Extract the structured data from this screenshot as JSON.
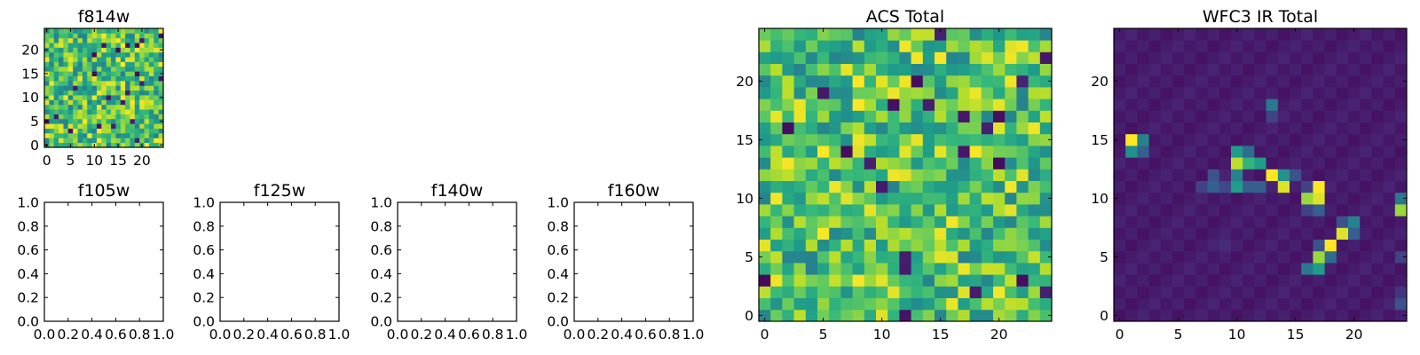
{
  "chart_data": [
    {
      "type": "heatmap",
      "title": "f814w",
      "grid_size": 25,
      "xlim": [
        -0.5,
        24.5
      ],
      "ylim": [
        -0.5,
        24.5
      ],
      "xticks": [
        0,
        5,
        10,
        15,
        20
      ],
      "yticks": [
        0,
        5,
        10,
        15,
        20
      ],
      "colormap": "viridis",
      "seed": 814,
      "value_range": [
        0,
        1
      ],
      "typical_value": 0.72
    },
    {
      "type": "empty",
      "title": "f105w",
      "xlim": [
        0,
        1
      ],
      "ylim": [
        0,
        1
      ],
      "xticks": [
        "0.0",
        "0.2",
        "0.4",
        "0.6",
        "0.8",
        "1.0"
      ],
      "yticks": [
        "0.0",
        "0.2",
        "0.4",
        "0.6",
        "0.8",
        "1.0"
      ]
    },
    {
      "type": "empty",
      "title": "f125w",
      "xlim": [
        0,
        1
      ],
      "ylim": [
        0,
        1
      ],
      "xticks": [
        "0.0",
        "0.2",
        "0.4",
        "0.6",
        "0.8",
        "1.0"
      ],
      "yticks": [
        "0.0",
        "0.2",
        "0.4",
        "0.6",
        "0.8",
        "1.0"
      ]
    },
    {
      "type": "empty",
      "title": "f140w",
      "xlim": [
        0,
        1
      ],
      "ylim": [
        0,
        1
      ],
      "xticks": [
        "0.0",
        "0.2",
        "0.4",
        "0.6",
        "0.8",
        "1.0"
      ],
      "yticks": [
        "0.0",
        "0.2",
        "0.4",
        "0.6",
        "0.8",
        "1.0"
      ]
    },
    {
      "type": "empty",
      "title": "f160w",
      "xlim": [
        0,
        1
      ],
      "ylim": [
        0,
        1
      ],
      "xticks": [
        "0.0",
        "0.2",
        "0.4",
        "0.6",
        "0.8",
        "1.0"
      ],
      "yticks": [
        "0.0",
        "0.2",
        "0.4",
        "0.6",
        "0.8",
        "1.0"
      ]
    },
    {
      "type": "heatmap",
      "title": "ACS Total",
      "grid_size": 25,
      "xlim": [
        -0.5,
        24.5
      ],
      "ylim": [
        -0.5,
        24.5
      ],
      "xticks": [
        0,
        5,
        10,
        15,
        20
      ],
      "yticks": [
        0,
        5,
        10,
        15,
        20
      ],
      "colormap": "viridis",
      "seed": 4242,
      "value_range": [
        0,
        1
      ],
      "typical_value": 0.72
    },
    {
      "type": "heatmap",
      "title": "WFC3 IR Total",
      "grid_size": 25,
      "xlim": [
        -0.5,
        24.5
      ],
      "ylim": [
        -0.5,
        24.5
      ],
      "xticks": [
        0,
        5,
        10,
        15,
        20
      ],
      "yticks": [
        0,
        5,
        10,
        15,
        20
      ],
      "colormap": "viridis",
      "value_range": [
        0,
        1
      ],
      "background_value": 0.05,
      "bright_pixels": [
        {
          "x": 1,
          "y": 15,
          "v": 1.0
        },
        {
          "x": 2,
          "y": 15,
          "v": 0.45
        },
        {
          "x": 1,
          "y": 14,
          "v": 0.5
        },
        {
          "x": 2,
          "y": 14,
          "v": 0.3
        },
        {
          "x": 13,
          "y": 18,
          "v": 0.4
        },
        {
          "x": 13,
          "y": 17,
          "v": 0.2
        },
        {
          "x": 10,
          "y": 14,
          "v": 0.55
        },
        {
          "x": 11,
          "y": 14,
          "v": 0.35
        },
        {
          "x": 10,
          "y": 13,
          "v": 0.9
        },
        {
          "x": 11,
          "y": 13,
          "v": 0.65
        },
        {
          "x": 12,
          "y": 13,
          "v": 0.55
        },
        {
          "x": 13,
          "y": 12,
          "v": 1.0
        },
        {
          "x": 14,
          "y": 12,
          "v": 0.5
        },
        {
          "x": 10,
          "y": 12,
          "v": 0.45
        },
        {
          "x": 12,
          "y": 11,
          "v": 0.3
        },
        {
          "x": 14,
          "y": 11,
          "v": 0.95
        },
        {
          "x": 8,
          "y": 12,
          "v": 0.25
        },
        {
          "x": 8,
          "y": 11,
          "v": 0.3
        },
        {
          "x": 7,
          "y": 11,
          "v": 0.2
        },
        {
          "x": 9,
          "y": 11,
          "v": 0.22
        },
        {
          "x": 10,
          "y": 11,
          "v": 0.55
        },
        {
          "x": 11,
          "y": 11,
          "v": 0.3
        },
        {
          "x": 16,
          "y": 11,
          "v": 0.2
        },
        {
          "x": 17,
          "y": 11,
          "v": 1.0
        },
        {
          "x": 16,
          "y": 10,
          "v": 0.85
        },
        {
          "x": 17,
          "y": 10,
          "v": 0.95
        },
        {
          "x": 17,
          "y": 9,
          "v": 0.3
        },
        {
          "x": 16,
          "y": 9,
          "v": 0.2
        },
        {
          "x": 24,
          "y": 10,
          "v": 0.4
        },
        {
          "x": 24,
          "y": 9,
          "v": 0.85
        },
        {
          "x": 19,
          "y": 8,
          "v": 0.25
        },
        {
          "x": 20,
          "y": 8,
          "v": 0.45
        },
        {
          "x": 19,
          "y": 7,
          "v": 0.95
        },
        {
          "x": 20,
          "y": 7,
          "v": 0.3
        },
        {
          "x": 18,
          "y": 6,
          "v": 1.0
        },
        {
          "x": 17,
          "y": 6,
          "v": 0.25
        },
        {
          "x": 17,
          "y": 5,
          "v": 0.85
        },
        {
          "x": 18,
          "y": 5,
          "v": 0.35
        },
        {
          "x": 17,
          "y": 4,
          "v": 0.55
        },
        {
          "x": 16,
          "y": 4,
          "v": 0.4
        },
        {
          "x": 14,
          "y": 12,
          "v": 0.5
        },
        {
          "x": 15,
          "y": 12,
          "v": 0.25
        },
        {
          "x": 9,
          "y": 6,
          "v": 0.12
        },
        {
          "x": 24,
          "y": 5,
          "v": 0.2
        },
        {
          "x": 24,
          "y": 1,
          "v": 0.25
        },
        {
          "x": 24,
          "y": 2,
          "v": 0.15
        }
      ]
    }
  ]
}
